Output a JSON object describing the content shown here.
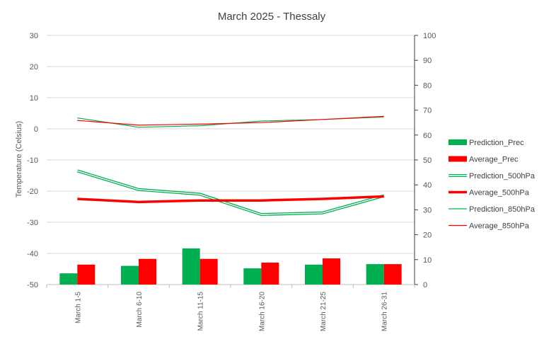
{
  "chart_data": {
    "type": "bar",
    "title": "March 2025 - Thessaly",
    "ylabel": "Temperature (Celsius)",
    "y2label": "",
    "categories": [
      "March 1-5",
      "March 6-10",
      "March 11-15",
      "March 16-20",
      "March 21-25",
      "March 26-31"
    ],
    "ylim": [
      -50,
      30
    ],
    "y_ticks": [
      30,
      20,
      10,
      0,
      -10,
      -20,
      -30,
      -40,
      -50
    ],
    "y2lim": [
      0,
      100
    ],
    "y2_ticks": [
      100,
      90,
      80,
      70,
      60,
      50,
      40,
      30,
      20,
      10,
      0
    ],
    "grid": true,
    "legend_position": "right",
    "colors": {
      "green": "#00b050",
      "red": "#ff0000"
    },
    "bar_series": [
      {
        "name": "Prediction_Prec",
        "color": "#00b050",
        "axis": "right",
        "values": [
          4.5,
          7.5,
          14.5,
          6.5,
          8.0,
          8.2
        ]
      },
      {
        "name": "Average_Prec",
        "color": "#ff0000",
        "axis": "right",
        "values": [
          8.0,
          10.3,
          10.3,
          8.8,
          10.5,
          8.2
        ]
      }
    ],
    "line_series": [
      {
        "name": "Prediction_500hPa",
        "color": "#00b050",
        "style": "double",
        "axis": "left",
        "values": [
          -13.5,
          -19.5,
          -21,
          -27.5,
          -27,
          -21.5
        ]
      },
      {
        "name": "Average_500hPa",
        "color": "#ff0000",
        "style": "thick",
        "axis": "left",
        "values": [
          -22.5,
          -23.5,
          -23,
          -23,
          -22.5,
          -21.7
        ]
      },
      {
        "name": "Prediction_850hPa",
        "color": "#00b050",
        "style": "thin",
        "axis": "left",
        "values": [
          3.5,
          0.5,
          1.0,
          2.5,
          3.0,
          3.8
        ]
      },
      {
        "name": "Average_850hPa",
        "color": "#ff0000",
        "style": "thin",
        "axis": "left",
        "values": [
          2.7,
          1.2,
          1.5,
          2.0,
          3.0,
          4.0
        ]
      }
    ]
  }
}
